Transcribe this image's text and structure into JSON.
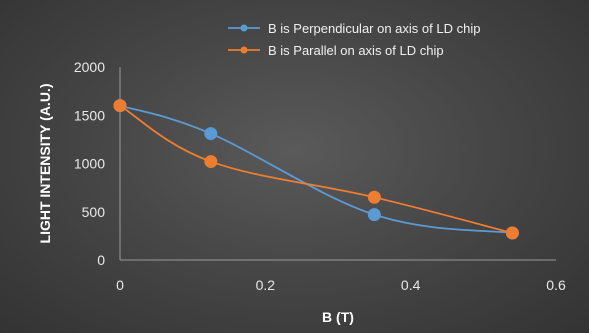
{
  "chart_data": {
    "type": "line",
    "title": "",
    "xlabel": "B (T)",
    "ylabel": "LIGHT INTENSITY (A.U.)",
    "xlim": [
      0,
      0.6
    ],
    "ylim": [
      0,
      2000
    ],
    "xticks": [
      0,
      0.2,
      0.4,
      0.6
    ],
    "xtick_labels": [
      "0",
      "0.2",
      "0.4",
      "0.6"
    ],
    "yticks": [
      0,
      500,
      1000,
      1500,
      2000
    ],
    "ytick_labels": [
      "0",
      "500",
      "1000",
      "1500",
      "2000"
    ],
    "grid": false,
    "legend_position": "top-right",
    "smooth": true,
    "x": [
      0,
      0.125,
      0.35,
      0.54
    ],
    "series": [
      {
        "name": "B is Perpendicular on axis of LD chip",
        "color": "#5b9bd5",
        "values": [
          1600,
          1310,
          470,
          280
        ]
      },
      {
        "name": "B is Parallel on axis of LD chip",
        "color": "#ed7d31",
        "values": [
          1600,
          1020,
          650,
          280
        ]
      }
    ]
  }
}
